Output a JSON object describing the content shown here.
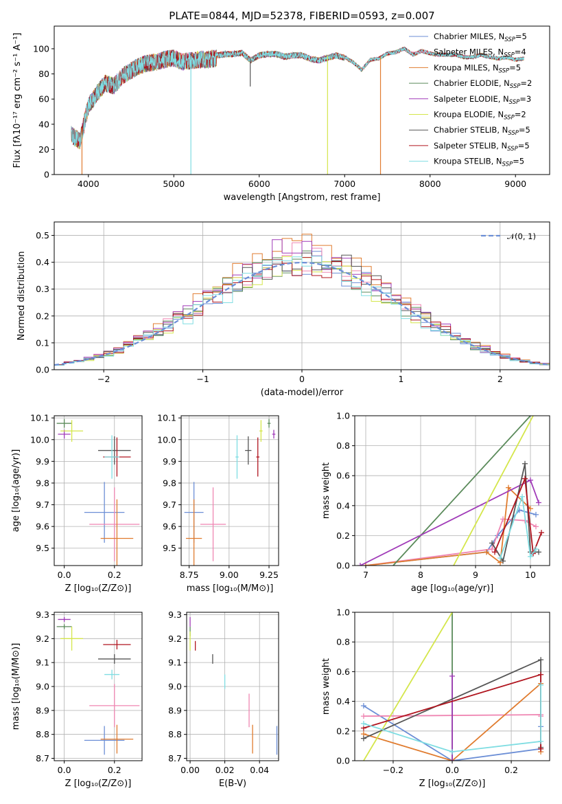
{
  "figure": {
    "title": "PLATE=0844, MJD=52378, FIBERID=0593, z=0.007"
  },
  "models": [
    {
      "name": "Chabrier MILES",
      "nssp": 5,
      "color": "#6b8ed6"
    },
    {
      "name": "Salpeter MILES",
      "nssp": 4,
      "color": "#ef85b2"
    },
    {
      "name": "Kroupa MILES",
      "nssp": 5,
      "color": "#e07b2e"
    },
    {
      "name": "Chabrier ELODIE",
      "nssp": 2,
      "color": "#5a8a5a"
    },
    {
      "name": "Salpeter ELODIE",
      "nssp": 3,
      "color": "#a03ab8"
    },
    {
      "name": "Kroupa ELODIE",
      "nssp": 2,
      "color": "#d4e64a"
    },
    {
      "name": "Chabrier STELIB",
      "nssp": 5,
      "color": "#555555"
    },
    {
      "name": "Salpeter STELIB",
      "nssp": 5,
      "color": "#b0141e"
    },
    {
      "name": "Kroupa STELIB",
      "nssp": 5,
      "color": "#7fdde2"
    }
  ],
  "legend_nssp_prefix": "N",
  "legend_nssp_sub": "SSP",
  "chart_data": [
    {
      "id": "spectrum",
      "type": "line",
      "xlabel": "wavelength [Angstrom, rest frame]",
      "ylabel": "Flux [fλ10⁻¹⁷ erg cm⁻² s⁻¹ A⁻¹]",
      "xlim": [
        3600,
        9400
      ],
      "ylim": [
        0,
        118
      ],
      "xticks": [
        4000,
        5000,
        6000,
        7000,
        8000,
        9000
      ],
      "yticks": [
        0,
        20,
        40,
        60,
        80,
        100
      ],
      "grid": false,
      "legend_position": "top-right",
      "continuum": {
        "x": [
          3800,
          3900,
          4000,
          4100,
          4200,
          4300,
          4400,
          4500,
          4600,
          4700,
          4800,
          4900,
          5000,
          5100,
          5200,
          5300,
          5400,
          5500,
          5600,
          5700,
          5800,
          5900,
          6000,
          6100,
          6200,
          6300,
          6400,
          6500,
          6600,
          6700,
          6800,
          6900,
          7000,
          7100,
          7200,
          7300,
          7400,
          7500,
          7600,
          7700,
          7800,
          7900,
          8000,
          8100,
          8200,
          8300,
          8400,
          8500,
          8600,
          8700,
          8800,
          8900,
          9000,
          9100
        ],
        "y": [
          35,
          30,
          58,
          68,
          76,
          74,
          82,
          86,
          90,
          92,
          93,
          95,
          96,
          93,
          94,
          95,
          95,
          96,
          97,
          97,
          98,
          92,
          96,
          97,
          97,
          95,
          96,
          96,
          93,
          92,
          94,
          96,
          94,
          90,
          84,
          92,
          93,
          97,
          98,
          101,
          96,
          99,
          97,
          96,
          96,
          96,
          94,
          94,
          96,
          94,
          93,
          94,
          92,
          93
        ]
      },
      "dips": [
        {
          "x": 3925,
          "y": 0,
          "series": 2
        },
        {
          "x": 5200,
          "y": 0,
          "series": 8
        },
        {
          "x": 5895,
          "y": 70,
          "series": 6
        },
        {
          "x": 6800,
          "y": 0,
          "series": 5
        },
        {
          "x": 7420,
          "y": 0,
          "series": 2
        }
      ]
    },
    {
      "id": "residuals",
      "type": "histogram",
      "xlabel": "(data-model)/error",
      "ylabel": "Normed distribution",
      "xlim": [
        -2.5,
        2.5
      ],
      "ylim": [
        0,
        0.55
      ],
      "xticks": [
        -2,
        -1,
        0,
        1,
        2
      ],
      "yticks": [
        0.0,
        0.1,
        0.2,
        0.3,
        0.4,
        0.5
      ],
      "grid": true,
      "legend_position": "top-right",
      "reference_label": "𝒩(0, 1)",
      "reference_color": "#6b8ed6",
      "bin_start": -2.5,
      "bin_width": 0.1,
      "amplitude_scale": [
        1.0,
        1.06,
        1.12,
        1.0,
        1.1,
        0.98,
        1.04,
        1.02,
        0.96
      ]
    },
    {
      "id": "age_vs_Z",
      "type": "errorbar",
      "xlabel": "Z [log₁₀(Z/Z⊙)]",
      "ylabel": "age  [log₁₀(age/yr)]",
      "xlim": [
        -0.04,
        0.31
      ],
      "ylim": [
        9.42,
        10.11
      ],
      "xticks": [
        0.0,
        0.2
      ],
      "yticks": [
        9.5,
        9.6,
        9.7,
        9.8,
        9.9,
        10.0,
        10.1
      ],
      "grid": true,
      "points": [
        {
          "series": 0,
          "x": 0.16,
          "y": 9.665,
          "xerr": 0.08,
          "yerr": 0.14
        },
        {
          "series": 1,
          "x": 0.2,
          "y": 9.61,
          "xerr": 0.1,
          "yerr": 0.17
        },
        {
          "series": 2,
          "x": 0.21,
          "y": 9.545,
          "xerr": 0.065,
          "yerr": 0.18
        },
        {
          "series": 3,
          "x": 0.0,
          "y": 10.075,
          "xerr": 0.03,
          "yerr": 0.02
        },
        {
          "series": 4,
          "x": 0.0,
          "y": 10.025,
          "xerr": 0.025,
          "yerr": 0.02
        },
        {
          "series": 5,
          "x": 0.03,
          "y": 10.04,
          "xerr": 0.045,
          "yerr": 0.05
        },
        {
          "series": 6,
          "x": 0.2,
          "y": 9.95,
          "xerr": 0.065,
          "yerr": 0.065
        },
        {
          "series": 7,
          "x": 0.21,
          "y": 9.92,
          "xerr": 0.055,
          "yerr": 0.09
        },
        {
          "series": 8,
          "x": 0.19,
          "y": 9.92,
          "xerr": 0.03,
          "yerr": 0.1
        }
      ]
    },
    {
      "id": "age_vs_mass",
      "type": "errorbar",
      "xlabel": "mass [log₁₀(M/M⊙)]",
      "ylabel": "",
      "xlim": [
        8.7,
        9.31
      ],
      "ylim": [
        9.42,
        10.11
      ],
      "xticks": [
        8.75,
        9.0,
        9.25
      ],
      "yticks": [
        9.5,
        9.6,
        9.7,
        9.8,
        9.9,
        10.0,
        10.1
      ],
      "grid": true,
      "points": [
        {
          "series": 0,
          "x": 8.78,
          "y": 9.665,
          "xerr": 0.06,
          "yerr": 0.14
        },
        {
          "series": 1,
          "x": 8.9,
          "y": 9.61,
          "xerr": 0.08,
          "yerr": 0.17
        },
        {
          "series": 2,
          "x": 8.78,
          "y": 9.545,
          "xerr": 0.05,
          "yerr": 0.18
        },
        {
          "series": 3,
          "x": 9.25,
          "y": 10.075,
          "xerr": 0.01,
          "yerr": 0.02
        },
        {
          "series": 4,
          "x": 9.28,
          "y": 10.025,
          "xerr": 0.01,
          "yerr": 0.02
        },
        {
          "series": 5,
          "x": 9.2,
          "y": 10.04,
          "xerr": 0.01,
          "yerr": 0.05
        },
        {
          "series": 6,
          "x": 9.12,
          "y": 9.95,
          "xerr": 0.02,
          "yerr": 0.065
        },
        {
          "series": 7,
          "x": 9.18,
          "y": 9.92,
          "xerr": 0.01,
          "yerr": 0.09
        },
        {
          "series": 8,
          "x": 9.05,
          "y": 9.92,
          "xerr": 0.01,
          "yerr": 0.1
        }
      ]
    },
    {
      "id": "weight_vs_age",
      "type": "line",
      "xlabel": "age  [log₁₀(age/yr)]",
      "ylabel": "mass weight",
      "xlim": [
        6.8,
        10.35
      ],
      "ylim": [
        0,
        1.0
      ],
      "xticks": [
        7,
        8,
        9,
        10
      ],
      "yticks": [
        0.0,
        0.2,
        0.4,
        0.6,
        0.8,
        1.0
      ],
      "grid": true,
      "series": [
        {
          "series": 0,
          "x": [
            7.0,
            9.2,
            9.4,
            9.8,
            10.1
          ],
          "y": [
            0.0,
            0.09,
            0.2,
            0.37,
            0.34
          ],
          "markers": true
        },
        {
          "series": 1,
          "x": [
            7.0,
            9.3,
            9.5,
            9.9,
            10.1
          ],
          "y": [
            0.0,
            0.11,
            0.31,
            0.3,
            0.26
          ],
          "markers": true
        },
        {
          "series": 2,
          "x": [
            7.0,
            9.2,
            9.45,
            9.6,
            10.0
          ],
          "y": [
            0.0,
            0.09,
            0.02,
            0.52,
            0.38
          ],
          "markers": true
        },
        {
          "series": 3,
          "x": [
            7.5,
            10.0
          ],
          "y": [
            0.0,
            1.0
          ],
          "markers": false
        },
        {
          "series": 4,
          "x": [
            6.9,
            10.0,
            10.15
          ],
          "y": [
            0.0,
            0.57,
            0.42
          ],
          "markers": true
        },
        {
          "series": 5,
          "x": [
            8.6,
            10.05
          ],
          "y": [
            0.0,
            1.0
          ],
          "markers": false
        },
        {
          "series": 6,
          "x": [
            9.3,
            9.5,
            9.9,
            10.0,
            10.15
          ],
          "y": [
            0.15,
            0.03,
            0.68,
            0.09,
            0.09
          ],
          "markers": true
        },
        {
          "series": 7,
          "x": [
            9.35,
            9.9,
            10.05,
            10.2
          ],
          "y": [
            0.09,
            0.58,
            0.08,
            0.22
          ],
          "markers": true
        },
        {
          "series": 8,
          "x": [
            9.45,
            9.85,
            10.0,
            10.1
          ],
          "y": [
            0.05,
            0.46,
            0.06,
            0.11
          ],
          "markers": true
        }
      ]
    },
    {
      "id": "mass_vs_Z",
      "type": "errorbar",
      "xlabel": "Z [log₁₀(Z/Z⊙)]",
      "ylabel": "mass [log₁₀(M/M⊙)]",
      "xlim": [
        -0.04,
        0.31
      ],
      "ylim": [
        8.69,
        9.31
      ],
      "xticks": [
        0.0,
        0.2
      ],
      "yticks": [
        8.7,
        8.8,
        8.9,
        9.0,
        9.1,
        9.2,
        9.3
      ],
      "grid": true,
      "points": [
        {
          "series": 0,
          "x": 0.16,
          "y": 8.775,
          "xerr": 0.08,
          "yerr": 0.06
        },
        {
          "series": 1,
          "x": 0.2,
          "y": 8.92,
          "xerr": 0.1,
          "yerr": 0.09
        },
        {
          "series": 2,
          "x": 0.21,
          "y": 8.78,
          "xerr": 0.065,
          "yerr": 0.06
        },
        {
          "series": 3,
          "x": 0.0,
          "y": 9.25,
          "xerr": 0.03,
          "yerr": 0.01
        },
        {
          "series": 4,
          "x": 0.0,
          "y": 9.28,
          "xerr": 0.025,
          "yerr": 0.01
        },
        {
          "series": 5,
          "x": 0.03,
          "y": 9.2,
          "xerr": 0.045,
          "yerr": 0.05
        },
        {
          "series": 6,
          "x": 0.2,
          "y": 9.115,
          "xerr": 0.065,
          "yerr": 0.02
        },
        {
          "series": 7,
          "x": 0.21,
          "y": 9.175,
          "xerr": 0.055,
          "yerr": 0.02
        },
        {
          "series": 8,
          "x": 0.19,
          "y": 9.05,
          "xerr": 0.03,
          "yerr": 0.02
        }
      ]
    },
    {
      "id": "mass_vs_ebv",
      "type": "errorbar",
      "xlabel": "E(B-V)",
      "ylabel": "",
      "xlim": [
        -0.002,
        0.051
      ],
      "ylim": [
        8.69,
        9.31
      ],
      "xticks": [
        0.0,
        0.02,
        0.04
      ],
      "yticks": [
        8.7,
        8.8,
        8.9,
        9.0,
        9.1,
        9.2,
        9.3
      ],
      "grid": true,
      "points": [
        {
          "series": 0,
          "x": 0.05,
          "y": 8.775,
          "xerr": 0.0,
          "yerr": 0.06
        },
        {
          "series": 1,
          "x": 0.034,
          "y": 8.9,
          "xerr": 0.0,
          "yerr": 0.07
        },
        {
          "series": 2,
          "x": 0.036,
          "y": 8.78,
          "xerr": 0.0,
          "yerr": 0.06
        },
        {
          "series": 3,
          "x": 0.0,
          "y": 9.23,
          "xerr": 0.0,
          "yerr": 0.02
        },
        {
          "series": 4,
          "x": 0.0,
          "y": 9.27,
          "xerr": 0.0,
          "yerr": 0.02
        },
        {
          "series": 5,
          "x": 0.0,
          "y": 9.19,
          "xerr": 0.0,
          "yerr": 0.04
        },
        {
          "series": 6,
          "x": 0.013,
          "y": 9.115,
          "xerr": 0.0,
          "yerr": 0.02
        },
        {
          "series": 7,
          "x": 0.003,
          "y": 9.17,
          "xerr": 0.0,
          "yerr": 0.02
        },
        {
          "series": 8,
          "x": 0.02,
          "y": 9.02,
          "xerr": 0.0,
          "yerr": 0.03
        }
      ]
    },
    {
      "id": "weight_vs_Z",
      "type": "line",
      "xlabel": "Z [log₁₀(Z/Z⊙)]",
      "ylabel": "mass weight",
      "xlim": [
        -0.33,
        0.33
      ],
      "ylim": [
        0,
        1.0
      ],
      "xticks": [
        -0.2,
        0.0,
        0.2
      ],
      "yticks": [
        0.0,
        0.2,
        0.4,
        0.6,
        0.8,
        1.0
      ],
      "grid": true,
      "series": [
        {
          "series": 0,
          "x": [
            -0.3,
            0.0,
            0.3,
            0.3
          ],
          "y": [
            0.37,
            0.0,
            0.08,
            0.23
          ],
          "markers": true
        },
        {
          "series": 1,
          "x": [
            -0.3,
            0.3,
            0.3
          ],
          "y": [
            0.3,
            0.31,
            0.3
          ],
          "markers": true
        },
        {
          "series": 2,
          "x": [
            -0.3,
            0.0,
            0.3,
            0.3
          ],
          "y": [
            0.18,
            0.0,
            0.52,
            0.06
          ],
          "markers": true
        },
        {
          "series": 3,
          "x": [
            0.0,
            0.0
          ],
          "y": [
            0.0,
            1.0
          ],
          "markers": false
        },
        {
          "series": 4,
          "x": [
            0.0,
            0.0
          ],
          "y": [
            0.0,
            0.57
          ],
          "markers": true
        },
        {
          "series": 5,
          "x": [
            -0.3,
            0.0
          ],
          "y": [
            0.0,
            1.0
          ],
          "markers": false
        },
        {
          "series": 6,
          "x": [
            -0.3,
            0.3,
            0.3
          ],
          "y": [
            0.15,
            0.68,
            0.09
          ],
          "markers": true
        },
        {
          "series": 7,
          "x": [
            -0.3,
            0.3,
            0.3
          ],
          "y": [
            0.22,
            0.58,
            0.08
          ],
          "markers": true
        },
        {
          "series": 8,
          "x": [
            -0.3,
            0.0,
            0.3,
            0.3
          ],
          "y": [
            0.25,
            0.06,
            0.13,
            0.51
          ],
          "markers": true
        }
      ]
    }
  ]
}
